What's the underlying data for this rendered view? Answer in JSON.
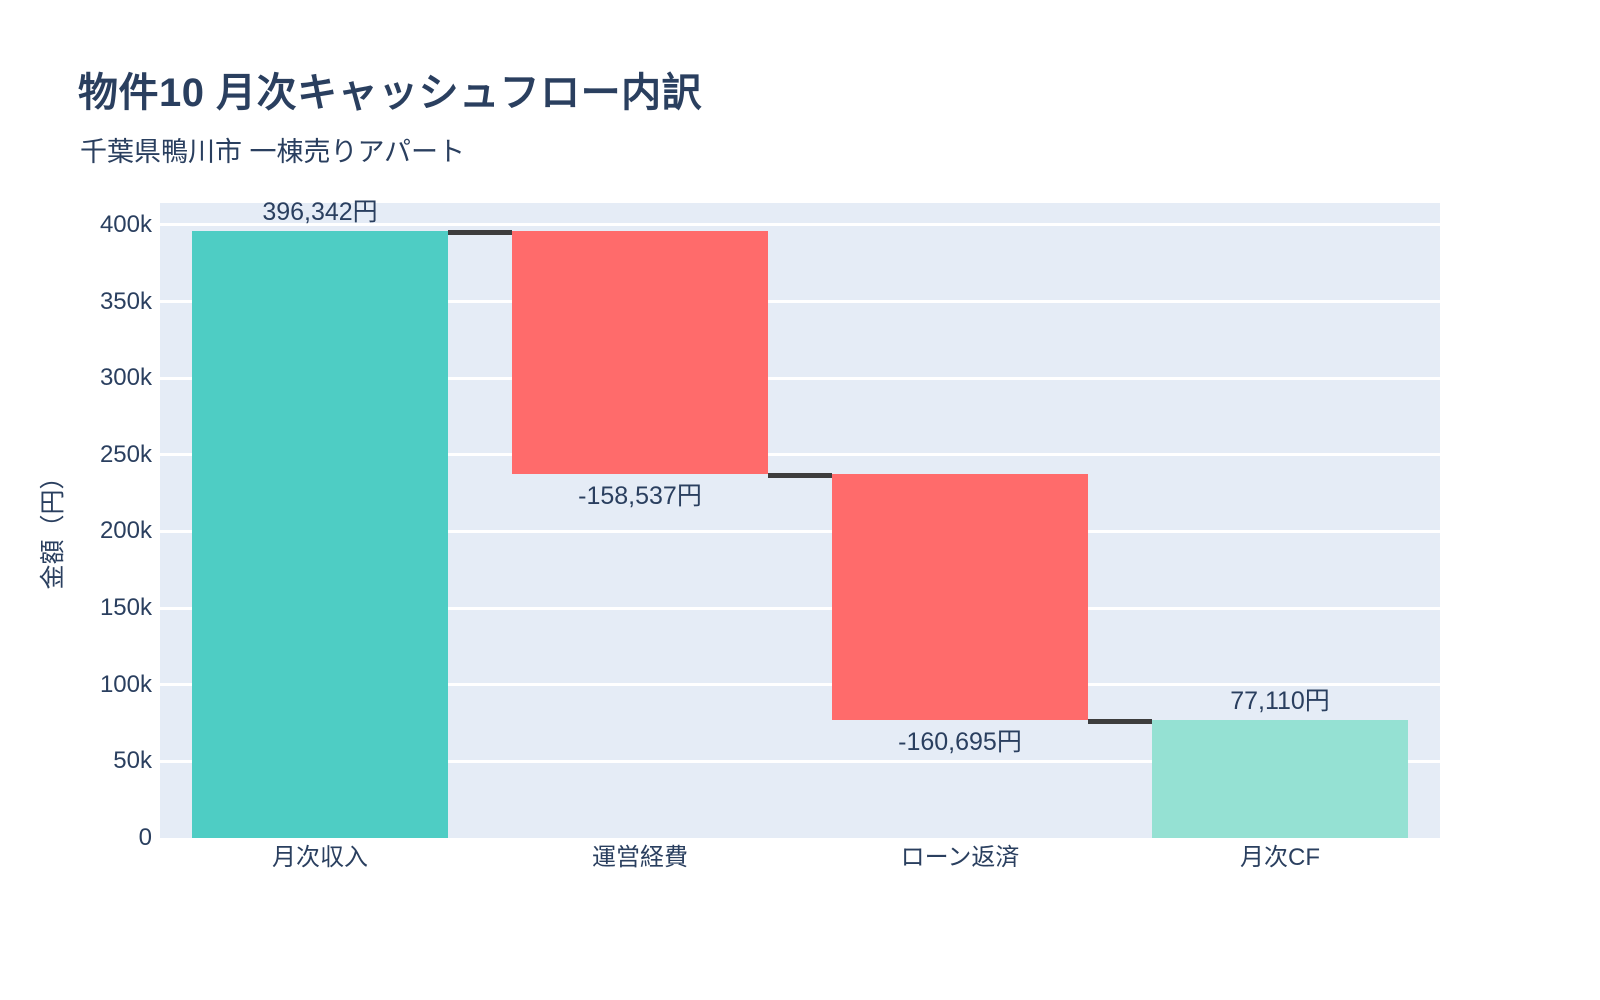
{
  "chart_data": {
    "type": "waterfall",
    "title": "物件10 月次キャッシュフロー内訳",
    "subtitle": "千葉県鴨川市 一棟売りアパート",
    "ylabel": "金額（円）",
    "xlabel": "",
    "categories": [
      "月次収入",
      "運営経費",
      "ローン返済",
      "月次CF"
    ],
    "measures": [
      "relative",
      "relative",
      "relative",
      "total"
    ],
    "values": [
      396342,
      -158537,
      -160695,
      77110
    ],
    "running_totals": [
      396342,
      237805,
      77110,
      77110
    ],
    "bar_labels": [
      "396,342円",
      "-158,537円",
      "-160,695円",
      "77,110円"
    ],
    "yticks": [
      0,
      50000,
      100000,
      150000,
      200000,
      250000,
      300000,
      350000,
      400000
    ],
    "ytick_labels": [
      "0",
      "50k",
      "100k",
      "150k",
      "200k",
      "250k",
      "300k",
      "350k",
      "400k"
    ],
    "ylim": [
      0,
      414355
    ],
    "grid": true,
    "legend": false,
    "colors": {
      "increasing": "#4ecdc4",
      "decreasing": "#ff6b6b",
      "total": "#95e1d3",
      "connector": "#3d3d3d",
      "plot_bg": "#e5ecf6",
      "grid": "#ffffff",
      "text": "#2a3f5f"
    }
  }
}
